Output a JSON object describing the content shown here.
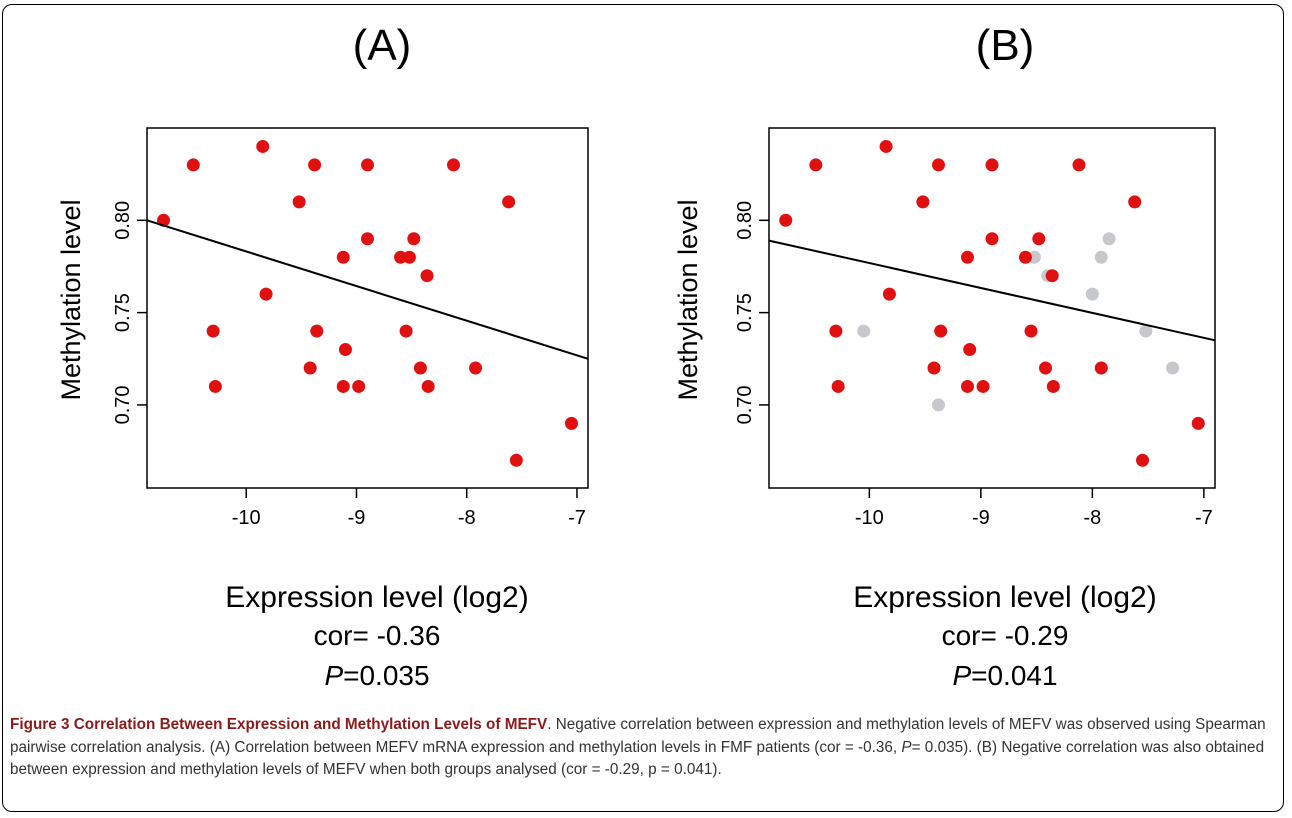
{
  "colors": {
    "fmf_points": "#e01010",
    "control_points": "#c6c8cc",
    "fit_line": "#000000",
    "caption_title": "#8c1a1a",
    "caption_text": "#333333"
  },
  "chart_data": [
    {
      "panel": "(A)",
      "type": "scatter",
      "xlabel": "Expression level (log2)",
      "ylabel": "Methylation level",
      "xticks": [
        -10,
        -9,
        -8,
        -7
      ],
      "yticks": [
        0.7,
        0.75,
        0.8
      ],
      "ytick_labels": [
        "0.70",
        "0.75",
        "0.80"
      ],
      "xlim": [
        -10.9,
        -6.9
      ],
      "ylim": [
        0.655,
        0.85
      ],
      "stat_cor": "cor= -0.36",
      "stat_p_symbol": "P",
      "stat_p_value": "=0.035",
      "fit_line": [
        [
          -10.9,
          0.8
        ],
        [
          -6.9,
          0.725
        ]
      ],
      "series": [
        {
          "color": "#e01010",
          "points": [
            [
              -10.75,
              0.8
            ],
            [
              -10.48,
              0.83
            ],
            [
              -10.3,
              0.74
            ],
            [
              -10.28,
              0.71
            ],
            [
              -9.85,
              0.84
            ],
            [
              -9.82,
              0.76
            ],
            [
              -9.52,
              0.81
            ],
            [
              -9.42,
              0.72
            ],
            [
              -9.38,
              0.83
            ],
            [
              -9.36,
              0.74
            ],
            [
              -9.12,
              0.78
            ],
            [
              -9.12,
              0.71
            ],
            [
              -9.1,
              0.73
            ],
            [
              -8.98,
              0.71
            ],
            [
              -8.9,
              0.79
            ],
            [
              -8.9,
              0.83
            ],
            [
              -8.6,
              0.78
            ],
            [
              -8.55,
              0.74
            ],
            [
              -8.52,
              0.78
            ],
            [
              -8.48,
              0.79
            ],
            [
              -8.42,
              0.72
            ],
            [
              -8.36,
              0.77
            ],
            [
              -8.35,
              0.71
            ],
            [
              -8.12,
              0.83
            ],
            [
              -7.92,
              0.72
            ],
            [
              -7.62,
              0.81
            ],
            [
              -7.55,
              0.67
            ],
            [
              -7.05,
              0.69
            ]
          ]
        }
      ]
    },
    {
      "panel": "(B)",
      "type": "scatter",
      "xlabel": "Expression level (log2)",
      "ylabel": "Methylation level",
      "xticks": [
        -10,
        -9,
        -8,
        -7
      ],
      "yticks": [
        0.7,
        0.75,
        0.8
      ],
      "ytick_labels": [
        "0.70",
        "0.75",
        "0.80"
      ],
      "xlim": [
        -10.9,
        -6.9
      ],
      "ylim": [
        0.655,
        0.85
      ],
      "stat_cor": "cor= -0.29",
      "stat_p_symbol": "P",
      "stat_p_value": "=0.041",
      "fit_line": [
        [
          -10.9,
          0.789
        ],
        [
          -6.9,
          0.735
        ]
      ],
      "series": [
        {
          "color": "#c6c8cc",
          "points": [
            [
              -10.05,
              0.74
            ],
            [
              -9.38,
              0.7
            ],
            [
              -8.52,
              0.78
            ],
            [
              -8.4,
              0.77
            ],
            [
              -8.0,
              0.76
            ],
            [
              -7.92,
              0.78
            ],
            [
              -7.85,
              0.79
            ],
            [
              -7.52,
              0.74
            ],
            [
              -7.28,
              0.72
            ]
          ]
        },
        {
          "color": "#e01010",
          "points": [
            [
              -10.75,
              0.8
            ],
            [
              -10.48,
              0.83
            ],
            [
              -10.3,
              0.74
            ],
            [
              -10.28,
              0.71
            ],
            [
              -9.85,
              0.84
            ],
            [
              -9.82,
              0.76
            ],
            [
              -9.52,
              0.81
            ],
            [
              -9.42,
              0.72
            ],
            [
              -9.38,
              0.83
            ],
            [
              -9.36,
              0.74
            ],
            [
              -9.12,
              0.78
            ],
            [
              -9.12,
              0.71
            ],
            [
              -9.1,
              0.73
            ],
            [
              -8.98,
              0.71
            ],
            [
              -8.9,
              0.79
            ],
            [
              -8.9,
              0.83
            ],
            [
              -8.6,
              0.78
            ],
            [
              -8.55,
              0.74
            ],
            [
              -8.48,
              0.79
            ],
            [
              -8.42,
              0.72
            ],
            [
              -8.36,
              0.77
            ],
            [
              -8.35,
              0.71
            ],
            [
              -8.12,
              0.83
            ],
            [
              -7.92,
              0.72
            ],
            [
              -7.62,
              0.81
            ],
            [
              -7.55,
              0.67
            ],
            [
              -7.05,
              0.69
            ]
          ]
        }
      ]
    }
  ],
  "caption": {
    "title": "Figure 3 Correlation Between Expression and Methylation Levels of MEFV",
    "text_1": ". Negative correlation between expression and methylation levels of MEFV was observed using Spearman pairwise correlation analysis. (A) Correlation between MEFV mRNA expression and methylation levels in FMF patients (cor = -0.36, ",
    "p_a": "P",
    "text_2": "= 0.035). (B) Negative correlation was also obtained between expression and methylation levels of MEFV when both groups analysed (cor = -0.29, p = 0.041)."
  }
}
